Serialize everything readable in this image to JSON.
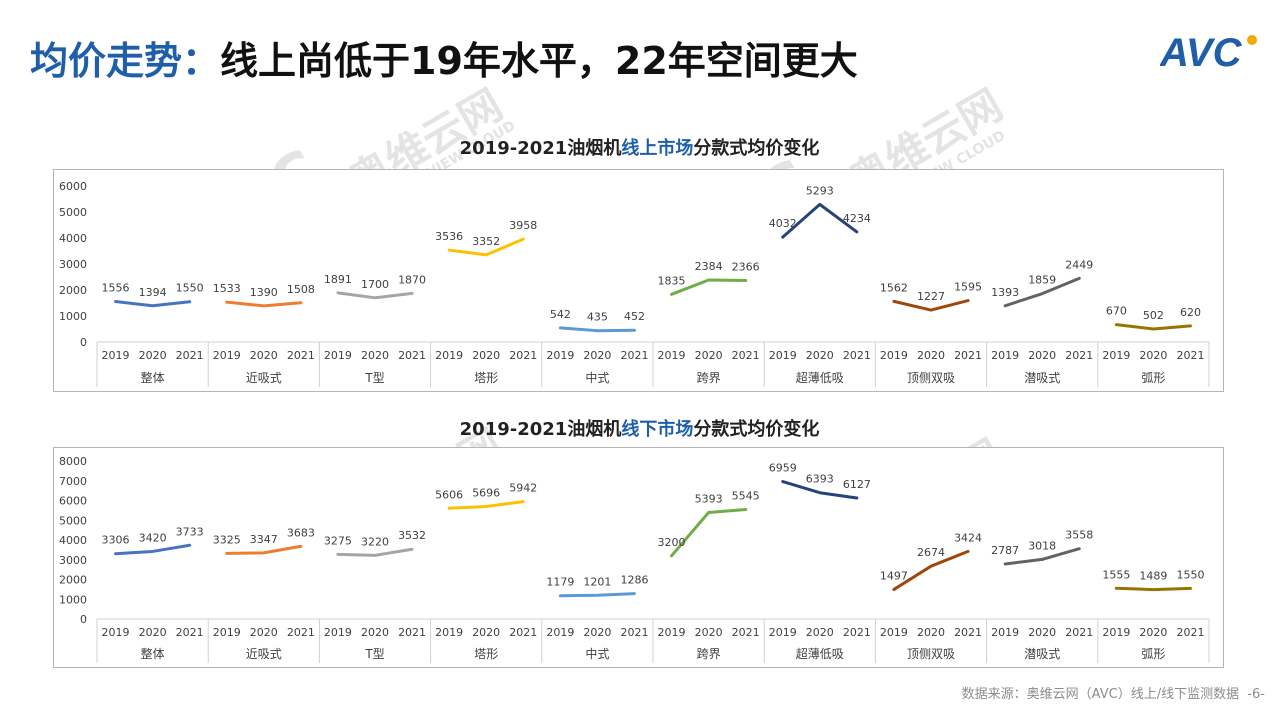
{
  "header": {
    "title_highlight": "均价走势：",
    "title_rest": "线上尚低于19年水平，22年空间更大",
    "logo_text": "AVC"
  },
  "footer": {
    "source": "数据来源：奥维云网（AVC）线上/线下监测数据",
    "page": "-6-"
  },
  "watermark": {
    "brand": "AVC",
    "cn": "奥维云网",
    "en": "ALL VIEW CLOUD"
  },
  "chart_data": [
    {
      "type": "line",
      "title_prefix": "2019-2021油烟机",
      "title_highlight": "线上市场",
      "title_suffix": "分款式均价变化",
      "years": [
        "2019",
        "2020",
        "2021"
      ],
      "ylim": [
        0,
        6000
      ],
      "yticks": [
        0,
        1000,
        2000,
        3000,
        4000,
        5000,
        6000
      ],
      "grid": false,
      "legend": "none",
      "series": [
        {
          "category": "整体",
          "color": "#4a72c4",
          "values": [
            1556,
            1394,
            1550
          ]
        },
        {
          "category": "近吸式",
          "color": "#ed7d31",
          "values": [
            1533,
            1390,
            1508
          ]
        },
        {
          "category": "T型",
          "color": "#a5a5a5",
          "values": [
            1891,
            1700,
            1870
          ]
        },
        {
          "category": "塔形",
          "color": "#ffc000",
          "values": [
            3536,
            3352,
            3958
          ]
        },
        {
          "category": "中式",
          "color": "#5b9bd5",
          "values": [
            542,
            435,
            452
          ]
        },
        {
          "category": "跨界",
          "color": "#70ad47",
          "values": [
            1835,
            2384,
            2366
          ]
        },
        {
          "category": "超薄低吸",
          "color": "#264478",
          "values": [
            4032,
            5293,
            4234
          ]
        },
        {
          "category": "顶侧双吸",
          "color": "#9e480e",
          "values": [
            1562,
            1227,
            1595
          ]
        },
        {
          "category": "潜吸式",
          "color": "#636363",
          "values": [
            1393,
            1859,
            2449
          ]
        },
        {
          "category": "弧形",
          "color": "#997300",
          "values": [
            670,
            502,
            620
          ]
        }
      ]
    },
    {
      "type": "line",
      "title_prefix": "2019-2021油烟机",
      "title_highlight": "线下市场",
      "title_suffix": "分款式均价变化",
      "years": [
        "2019",
        "2020",
        "2021"
      ],
      "ylim": [
        0,
        8000
      ],
      "yticks": [
        0,
        1000,
        2000,
        3000,
        4000,
        5000,
        6000,
        7000,
        8000
      ],
      "grid": false,
      "legend": "none",
      "series": [
        {
          "category": "整体",
          "color": "#4a72c4",
          "values": [
            3306,
            3420,
            3733
          ]
        },
        {
          "category": "近吸式",
          "color": "#ed7d31",
          "values": [
            3325,
            3347,
            3683
          ]
        },
        {
          "category": "T型",
          "color": "#a5a5a5",
          "values": [
            3275,
            3220,
            3532
          ]
        },
        {
          "category": "塔形",
          "color": "#ffc000",
          "values": [
            5606,
            5696,
            5942
          ]
        },
        {
          "category": "中式",
          "color": "#5b9bd5",
          "values": [
            1179,
            1201,
            1286
          ]
        },
        {
          "category": "跨界",
          "color": "#70ad47",
          "values": [
            3200,
            5393,
            5545
          ]
        },
        {
          "category": "超薄低吸",
          "color": "#264478",
          "values": [
            6959,
            6393,
            6127
          ]
        },
        {
          "category": "顶侧双吸",
          "color": "#9e480e",
          "values": [
            1497,
            2674,
            3424
          ]
        },
        {
          "category": "潜吸式",
          "color": "#636363",
          "values": [
            2787,
            3018,
            3558
          ]
        },
        {
          "category": "弧形",
          "color": "#997300",
          "values": [
            1555,
            1489,
            1550
          ]
        }
      ]
    }
  ]
}
